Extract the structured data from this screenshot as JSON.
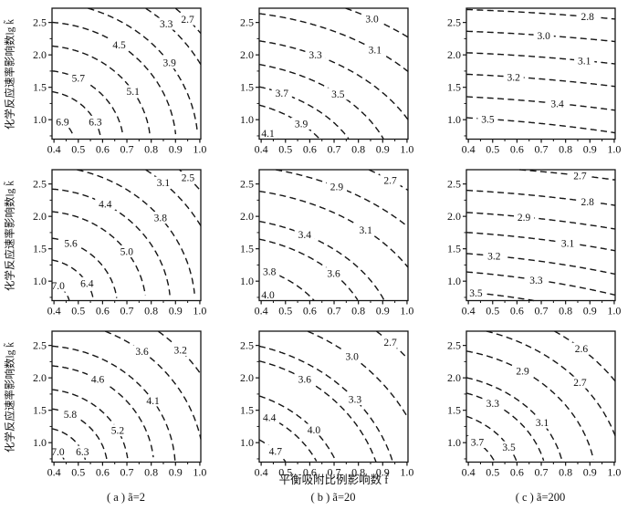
{
  "figure": {
    "background": "#ffffff",
    "line_color": "#151515",
    "y_axis_title": "化学反应速率影响数lg k̃",
    "x_axis_title": "平衡吸附比例影响数 f̃",
    "captions": [
      "( a ) ã=2",
      "( b ) ã=20",
      "( c ) ã=200"
    ]
  },
  "chart_data": {
    "type": "contour",
    "grid": {
      "rows": 3,
      "cols": 3
    },
    "columns_parameter": [
      "ã=2",
      "ã=20",
      "ã=200"
    ],
    "x_axis": {
      "label": "平衡吸附比例影响数 f̃",
      "range": [
        0.392,
        1.004
      ],
      "ticks": [
        0.4,
        0.5,
        0.6,
        0.7,
        0.8,
        0.9,
        1.0
      ],
      "minor_ticks": [
        0.45,
        0.55,
        0.65,
        0.75,
        0.85,
        0.95
      ]
    },
    "y_axis": {
      "label": "化学反应速率影响数lg k̃",
      "range": [
        0.7,
        2.72
      ],
      "ticks": [
        1.0,
        1.5,
        2.0,
        2.5
      ],
      "minor_ticks": [
        0.75,
        1.25,
        1.75,
        2.25
      ]
    },
    "line_style": {
      "dash": "dashed",
      "color": "#151515"
    },
    "subplots": [
      {
        "row": 0,
        "col": 0,
        "field_model": {
          "cx": 0.35,
          "cy": 0.6,
          "sx": 0.2,
          "sy": 0.69
        },
        "contours": [
          {
            "label": "6.9",
            "at": [
              0.435,
              0.97
            ]
          },
          {
            "label": "6.3",
            "at": [
              0.57,
              0.97
            ]
          },
          {
            "label": "5.7",
            "at": [
              0.5,
              1.64
            ]
          },
          {
            "label": "5.1",
            "at": [
              0.725,
              1.44
            ]
          },
          {
            "label": "4.5",
            "at": [
              0.668,
              2.16
            ]
          },
          {
            "label": "3.9",
            "at": [
              0.875,
              1.88
            ]
          },
          {
            "label": "3.3",
            "at": [
              0.862,
              2.48
            ]
          },
          {
            "label": "2.7",
            "at": [
              0.95,
              2.55
            ]
          }
        ]
      },
      {
        "row": 0,
        "col": 1,
        "field_model": {
          "cx": 0.2,
          "cy": 0.0,
          "sx": 0.3,
          "sy": 0.76
        },
        "contours": [
          {
            "label": "4.1",
            "at": [
              0.428,
              0.79
            ]
          },
          {
            "label": "3.9",
            "at": [
              0.565,
              0.94
            ]
          },
          {
            "label": "3.7",
            "at": [
              0.485,
              1.41
            ]
          },
          {
            "label": "3.5",
            "at": [
              0.716,
              1.4
            ]
          },
          {
            "label": "3.3",
            "at": [
              0.623,
              2.0
            ]
          },
          {
            "label": "3.1",
            "at": [
              0.868,
              2.08
            ]
          },
          {
            "label": "3.0",
            "at": [
              0.856,
              2.56
            ]
          }
        ]
      },
      {
        "row": 0,
        "col": 2,
        "field_model": {
          "cx": 0.0,
          "cy": -2.0,
          "sx": 2.0,
          "sy": 2.52
        },
        "contours": [
          {
            "label": "3.5",
            "at": [
              0.48,
              1.01
            ]
          },
          {
            "label": "3.4",
            "at": [
              0.766,
              1.25
            ]
          },
          {
            "label": "3.2",
            "at": [
              0.586,
              1.66
            ]
          },
          {
            "label": "3.1",
            "at": [
              0.877,
              1.91
            ]
          },
          {
            "label": "3.0",
            "at": [
              0.71,
              2.3
            ]
          },
          {
            "label": "2.8",
            "at": [
              0.89,
              2.59
            ]
          }
        ]
      },
      {
        "row": 1,
        "col": 0,
        "field_model": {
          "cx": 0.35,
          "cy": 0.6,
          "sx": 0.2,
          "sy": 0.69
        },
        "contours": [
          {
            "label": "7.0",
            "at": [
              0.417,
              0.93
            ]
          },
          {
            "label": "6.4",
            "at": [
              0.536,
              0.97
            ]
          },
          {
            "label": "5.6",
            "at": [
              0.469,
              1.59
            ]
          },
          {
            "label": "5.0",
            "at": [
              0.699,
              1.46
            ]
          },
          {
            "label": "4.4",
            "at": [
              0.611,
              2.19
            ]
          },
          {
            "label": "3.8",
            "at": [
              0.838,
              1.98
            ]
          },
          {
            "label": "3.1",
            "at": [
              0.85,
              2.52
            ]
          },
          {
            "label": "2.5",
            "at": [
              0.951,
              2.6
            ]
          }
        ]
      },
      {
        "row": 1,
        "col": 1,
        "field_model": {
          "cx": 0.2,
          "cy": 0.0,
          "sx": 0.3,
          "sy": 0.79
        },
        "contours": [
          {
            "label": "4.0",
            "at": [
              0.428,
              0.79
            ]
          },
          {
            "label": "3.8",
            "at": [
              0.434,
              1.15
            ]
          },
          {
            "label": "3.6",
            "at": [
              0.698,
              1.12
            ]
          },
          {
            "label": "3.4",
            "at": [
              0.579,
              1.72
            ]
          },
          {
            "label": "3.1",
            "at": [
              0.83,
              1.79
            ]
          },
          {
            "label": "2.9",
            "at": [
              0.711,
              2.46
            ]
          },
          {
            "label": "2.7",
            "at": [
              0.931,
              2.56
            ]
          }
        ]
      },
      {
        "row": 1,
        "col": 2,
        "field_model": {
          "cx": 0.0,
          "cy": -1.5,
          "sx": 1.5,
          "sy": 2.15
        },
        "contours": [
          {
            "label": "3.5",
            "at": [
              0.431,
              0.82
            ]
          },
          {
            "label": "3.3",
            "at": [
              0.679,
              1.02
            ]
          },
          {
            "label": "3.2",
            "at": [
              0.506,
              1.39
            ]
          },
          {
            "label": "3.1",
            "at": [
              0.809,
              1.59
            ]
          },
          {
            "label": "2.9",
            "at": [
              0.629,
              1.99
            ]
          },
          {
            "label": "2.8",
            "at": [
              0.89,
              2.23
            ]
          },
          {
            "label": "2.7",
            "at": [
              0.859,
              2.63
            ]
          }
        ]
      },
      {
        "row": 2,
        "col": 0,
        "field_model": {
          "cx": 0.35,
          "cy": 0.6,
          "sx": 0.2,
          "sy": 0.69
        },
        "contours": [
          {
            "label": "7.0",
            "at": [
              0.416,
              0.86
            ]
          },
          {
            "label": "6.3",
            "at": [
              0.517,
              0.86
            ]
          },
          {
            "label": "5.8",
            "at": [
              0.467,
              1.44
            ]
          },
          {
            "label": "5.2",
            "at": [
              0.662,
              1.19
            ]
          },
          {
            "label": "4.6",
            "at": [
              0.58,
              1.98
            ]
          },
          {
            "label": "4.1",
            "at": [
              0.807,
              1.65
            ]
          },
          {
            "label": "3.6",
            "at": [
              0.762,
              2.41
            ]
          },
          {
            "label": "3.2",
            "at": [
              0.92,
              2.43
            ]
          }
        ]
      },
      {
        "row": 2,
        "col": 1,
        "field_model": {
          "cx": 0.2,
          "cy": 0.0,
          "sx": 0.3,
          "sy": 1.0
        },
        "contours": [
          {
            "label": "4.7",
            "at": [
              0.459,
              0.87
            ]
          },
          {
            "label": "4.4",
            "at": [
              0.434,
              1.39
            ]
          },
          {
            "label": "4.0",
            "at": [
              0.617,
              1.2
            ]
          },
          {
            "label": "3.6",
            "at": [
              0.579,
              1.98
            ]
          },
          {
            "label": "3.3",
            "at": [
              0.786,
              1.67
            ]
          },
          {
            "label": "3.0",
            "at": [
              0.774,
              2.33
            ]
          },
          {
            "label": "2.7",
            "at": [
              0.931,
              2.55
            ]
          }
        ]
      },
      {
        "row": 2,
        "col": 2,
        "field_model": {
          "cx": 0.25,
          "cy": 0.35,
          "sx": 0.25,
          "sy": 0.78
        },
        "contours": [
          {
            "label": "3.7",
            "at": [
              0.437,
              1.01
            ]
          },
          {
            "label": "3.5",
            "at": [
              0.567,
              0.93
            ]
          },
          {
            "label": "3.3",
            "at": [
              0.5,
              1.61
            ]
          },
          {
            "label": "3.1",
            "at": [
              0.704,
              1.31
            ]
          },
          {
            "label": "2.9",
            "at": [
              0.623,
              2.11
            ]
          },
          {
            "label": "2.7",
            "at": [
              0.859,
              1.93
            ]
          },
          {
            "label": "2.6",
            "at": [
              0.865,
              2.45
            ]
          }
        ]
      }
    ]
  }
}
